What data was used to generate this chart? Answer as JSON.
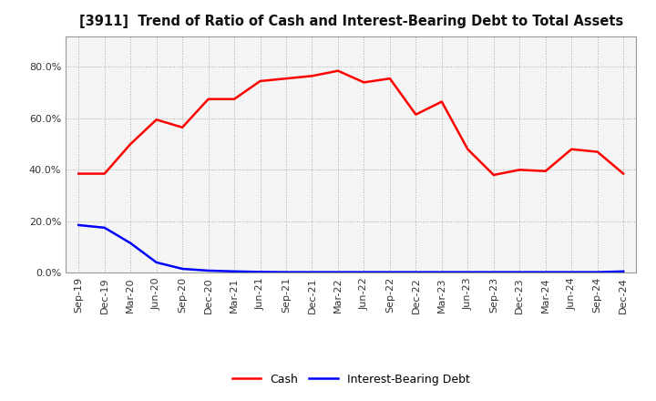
{
  "title": "[3911]  Trend of Ratio of Cash and Interest-Bearing Debt to Total Assets",
  "x_labels": [
    "Sep-19",
    "Dec-19",
    "Mar-20",
    "Jun-20",
    "Sep-20",
    "Dec-20",
    "Mar-21",
    "Jun-21",
    "Sep-21",
    "Dec-21",
    "Mar-22",
    "Jun-22",
    "Sep-22",
    "Dec-22",
    "Mar-23",
    "Jun-23",
    "Sep-23",
    "Dec-23",
    "Mar-24",
    "Jun-24",
    "Sep-24",
    "Dec-24"
  ],
  "cash": [
    0.385,
    0.385,
    0.5,
    0.595,
    0.565,
    0.675,
    0.675,
    0.745,
    0.755,
    0.765,
    0.785,
    0.74,
    0.755,
    0.615,
    0.665,
    0.48,
    0.38,
    0.4,
    0.395,
    0.48,
    0.47,
    0.385
  ],
  "ibd": [
    0.185,
    0.175,
    0.115,
    0.04,
    0.015,
    0.008,
    0.005,
    0.003,
    0.002,
    0.002,
    0.002,
    0.002,
    0.002,
    0.002,
    0.002,
    0.002,
    0.002,
    0.002,
    0.002,
    0.002,
    0.002,
    0.005
  ],
  "cash_color": "#ff0000",
  "ibd_color": "#0000ff",
  "ylim": [
    0.0,
    0.92
  ],
  "yticks": [
    0.0,
    0.2,
    0.4,
    0.6,
    0.8
  ],
  "ytick_labels": [
    "0.0%",
    "20.0%",
    "40.0%",
    "60.0%",
    "80.0%"
  ],
  "background_color": "#ffffff",
  "plot_bg_color": "#f5f5f5",
  "grid_color": "#aaaaaa",
  "legend_cash": "Cash",
  "legend_ibd": "Interest-Bearing Debt",
  "line_width": 1.8,
  "title_fontsize": 10.5,
  "tick_fontsize": 8,
  "legend_fontsize": 9
}
